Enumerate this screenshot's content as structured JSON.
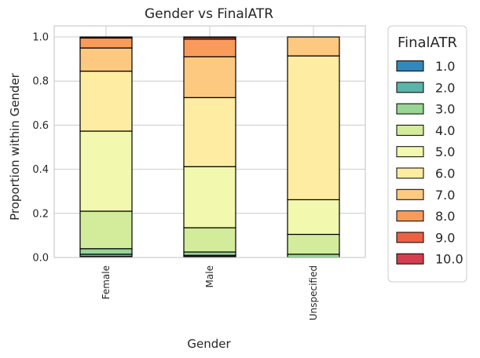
{
  "chart_data": {
    "type": "bar",
    "stacked": true,
    "title": "Gender vs FinalATR",
    "xlabel": "Gender",
    "ylabel": "Proportion within Gender",
    "ylim": [
      0,
      1.05
    ],
    "yticks": [
      "0.0",
      "0.2",
      "0.4",
      "0.6",
      "0.8",
      "1.0"
    ],
    "categories": [
      "Female",
      "Male",
      "Unspecified"
    ],
    "grid": true,
    "legend": {
      "title": "FinalATR",
      "placement": "outside-right"
    },
    "series": [
      {
        "name": "1.0",
        "color": "#3288bd",
        "values": [
          0.005,
          0.005,
          0.0
        ]
      },
      {
        "name": "2.0",
        "color": "#5ab4a9",
        "values": [
          0.01,
          0.005,
          0.0
        ]
      },
      {
        "name": "3.0",
        "color": "#99d594",
        "values": [
          0.025,
          0.015,
          0.015
        ]
      },
      {
        "name": "4.0",
        "color": "#d2ec9b",
        "values": [
          0.17,
          0.11,
          0.09
        ]
      },
      {
        "name": "5.0",
        "color": "#f2f8ad",
        "values": [
          0.363,
          0.277,
          0.157
        ]
      },
      {
        "name": "6.0",
        "color": "#feeca2",
        "values": [
          0.272,
          0.313,
          0.652
        ]
      },
      {
        "name": "7.0",
        "color": "#fdc980",
        "values": [
          0.105,
          0.185,
          0.086
        ]
      },
      {
        "name": "8.0",
        "color": "#f99b5b",
        "values": [
          0.045,
          0.08,
          0.0
        ]
      },
      {
        "name": "9.0",
        "color": "#ec6144",
        "values": [
          0.005,
          0.008,
          0.0
        ]
      },
      {
        "name": "10.0",
        "color": "#d53e4f",
        "values": [
          0.0,
          0.002,
          0.0
        ]
      }
    ]
  }
}
